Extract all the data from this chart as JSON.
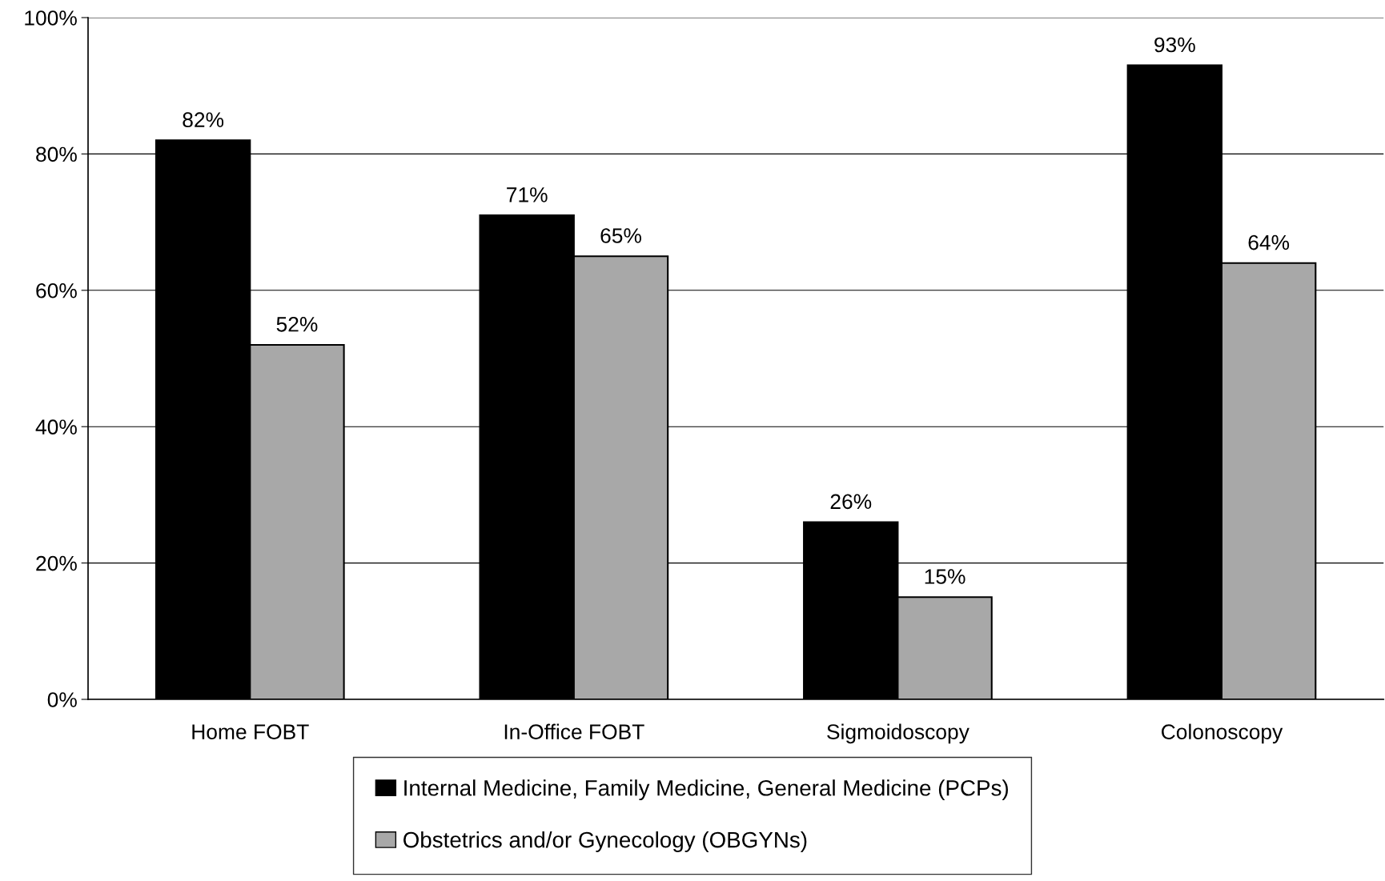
{
  "chart_data": {
    "type": "bar",
    "categories": [
      "Home FOBT",
      "In-Office FOBT",
      "Sigmoidoscopy",
      "Colonoscopy"
    ],
    "series": [
      {
        "name": "Internal Medicine, Family Medicine, General Medicine (PCPs)",
        "color": "#000000",
        "values": [
          82,
          71,
          26,
          93
        ],
        "value_labels": [
          "82%",
          "71%",
          "26%",
          "93%"
        ]
      },
      {
        "name": "Obstetrics and/or Gynecology (OBGYNs)",
        "color": "#a8a8a8",
        "values": [
          52,
          65,
          15,
          64
        ],
        "value_labels": [
          "52%",
          "65%",
          "15%",
          "64%"
        ]
      }
    ],
    "ylim": [
      0,
      100
    ],
    "yticks": [
      {
        "value": 0,
        "label": "0%"
      },
      {
        "value": 20,
        "label": "20%"
      },
      {
        "value": 40,
        "label": "40%"
      },
      {
        "value": 60,
        "label": "60%"
      },
      {
        "value": 80,
        "label": "80%"
      },
      {
        "value": 100,
        "label": "100%"
      }
    ],
    "grid": "y",
    "legend": "bottom"
  }
}
